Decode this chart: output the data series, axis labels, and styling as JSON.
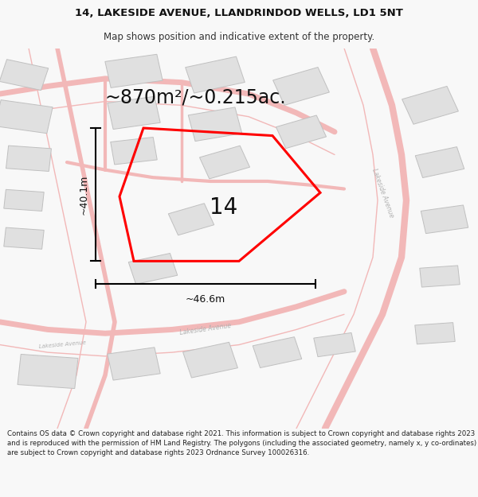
{
  "title_line1": "14, LAKESIDE AVENUE, LLANDRINDOD WELLS, LD1 5NT",
  "title_line2": "Map shows position and indicative extent of the property.",
  "area_label": "~870m²/~0.215ac.",
  "plot_number": "14",
  "dim_height": "~40.1m",
  "dim_width": "~46.6m",
  "footer": "Contains OS data © Crown copyright and database right 2021. This information is subject to Crown copyright and database rights 2023 and is reproduced with the permission of HM Land Registry. The polygons (including the associated geometry, namely x, y co-ordinates) are subject to Crown copyright and database rights 2023 Ordnance Survey 100026316.",
  "bg_color": "#f8f8f8",
  "map_bg": "#ffffff",
  "road_color": "#f2b8b8",
  "building_color": "#e0e0e0",
  "building_edge": "#c0c0c0",
  "plot_color": "#ff0000",
  "plot_linewidth": 2.2,
  "road_text_color": "#b0b0b0",
  "title_fontsize": 9.5,
  "subtitle_fontsize": 8.5,
  "area_fontsize": 17,
  "plot_label_fontsize": 20,
  "dim_fontsize": 9,
  "footer_fontsize": 6.2,
  "road_lw": 1.0
}
